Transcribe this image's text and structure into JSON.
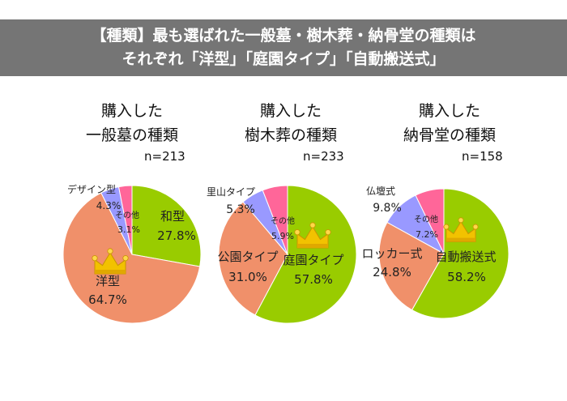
{
  "header": {
    "line1": "【種類】最も選ばれた一般墓・樹木葬・納骨堂の種類は",
    "line2": "それぞれ「洋型」「庭園タイプ」「自動搬送式」",
    "background": "#757575"
  },
  "charts_text": [
    {
      "title1": "購入した",
      "title2": "一般墓の種類",
      "n": "n=213"
    },
    {
      "title1": "購入した",
      "title2": "樹木葬の種類",
      "n": "n=233"
    },
    {
      "title1": "購入した",
      "title2": "納骨堂の種類",
      "n": "n=158"
    }
  ],
  "chart_data": [
    {
      "type": "pie",
      "title": "購入した一般墓の種類",
      "n": "n=213",
      "slices": [
        {
          "label": "和型",
          "value": 27.8,
          "pct": "27.8%",
          "color": "#99cc00"
        },
        {
          "label": "洋型",
          "value": 64.7,
          "pct": "64.7%",
          "color": "#f0906a",
          "crown": true
        },
        {
          "label": "デザイン型",
          "value": 4.3,
          "pct": "4.3%",
          "color": "#9999ff"
        },
        {
          "label": "その他",
          "value": 3.1,
          "pct": "3.1%",
          "color": "#ff6699"
        }
      ]
    },
    {
      "type": "pie",
      "title": "購入した樹木葬の種類",
      "n": "n=233",
      "slices": [
        {
          "label": "庭園タイプ",
          "value": 57.8,
          "pct": "57.8%",
          "color": "#99cc00",
          "crown": true
        },
        {
          "label": "公園タイプ",
          "value": 31.0,
          "pct": "31.0%",
          "color": "#f0906a"
        },
        {
          "label": "里山タイプ",
          "value": 5.3,
          "pct": "5.3%",
          "color": "#9999ff"
        },
        {
          "label": "その他",
          "value": 5.9,
          "pct": "5.9%",
          "color": "#ff6699"
        }
      ]
    },
    {
      "type": "pie",
      "title": "購入した納骨堂の種類",
      "n": "n=158",
      "slices": [
        {
          "label": "自動搬送式",
          "value": 58.2,
          "pct": "58.2%",
          "color": "#99cc00",
          "crown": true
        },
        {
          "label": "ロッカー式",
          "value": 24.8,
          "pct": "24.8%",
          "color": "#f0906a"
        },
        {
          "label": "仏壇式",
          "value": 9.8,
          "pct": "9.8%",
          "color": "#9999ff"
        },
        {
          "label": "その他",
          "value": 7.2,
          "pct": "7.2%",
          "color": "#ff6699"
        }
      ]
    }
  ]
}
